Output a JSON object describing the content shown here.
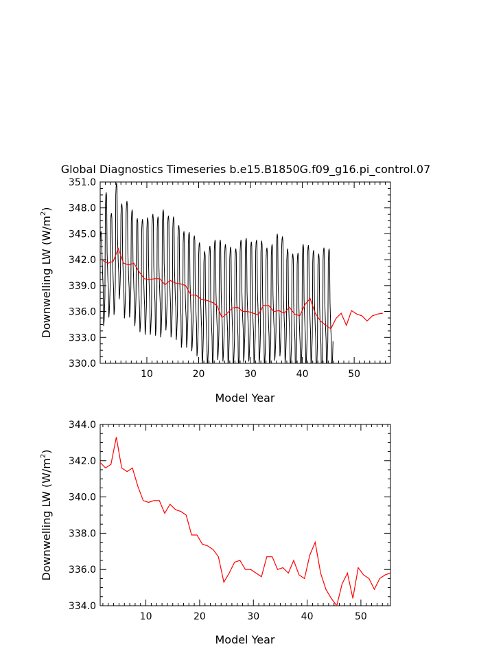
{
  "page_title": "Global Diagnostics Timeseries b.e15.B1850G.f09_g16.pi_control.07",
  "chart_data": [
    {
      "type": "line",
      "title": "Global Diagnostics Timeseries b.e15.B1850G.f09_g16.pi_control.07",
      "xlabel": "Model Year",
      "ylabel": "Downwelling LW (W/m²)",
      "ylabel_parts": {
        "before": "Downwelling LW (W/m",
        "sup": "2",
        "after": ")"
      },
      "xlim": [
        1,
        57
      ],
      "ylim": [
        330.0,
        351.0
      ],
      "xticks": [
        10,
        20,
        30,
        40,
        50
      ],
      "yticks": [
        330.0,
        333.0,
        336.0,
        339.0,
        342.0,
        345.0,
        348.0,
        351.0
      ],
      "ytick_labels": [
        "330.0",
        "333.0",
        "336.0",
        "339.0",
        "342.0",
        "345.0",
        "348.0",
        "351.0"
      ],
      "grid": false,
      "series": [
        {
          "kind": "monthly",
          "color": "#000000",
          "seasonal_amplitude": 3.2,
          "values": [
            342.1,
            341.6,
            337.5,
            346.6,
            341.4,
            338.5,
            344.2,
            341.5,
            338.8,
            347.7,
            343.3,
            340.6,
            345.3,
            341.0,
            338.4,
            345.6,
            341.6,
            338.5,
            344.6,
            340.5,
            337.5,
            343.6,
            339.3,
            336.8,
            343.5,
            339.4,
            336.5,
            343.7,
            339.9,
            336.5,
            344.1,
            339.9,
            336.4,
            343.8,
            339.8,
            336.2,
            344.6,
            340.3,
            337.0,
            343.9,
            339.6,
            336.2,
            343.8,
            339.4,
            335.9,
            342.8,
            338.4,
            335.0,
            342.1,
            338.1,
            335.0,
            342.0,
            338.0,
            334.6,
            341.6,
            337.4,
            334.0,
            340.8,
            336.8,
            333.0,
            339.8,
            335.7,
            332.6,
            340.4,
            335.9,
            332.9,
            341.1,
            336.9,
            333.6,
            341.1,
            336.9,
            333.4,
            340.6,
            336.6,
            333.0,
            340.3,
            336.3,
            332.6,
            340.1,
            336.0,
            332.6,
            341.1,
            336.9,
            333.3,
            341.3,
            336.9,
            333.4,
            340.9,
            336.4,
            333.0,
            341.1,
            337.0,
            333.2,
            341.0,
            336.3,
            332.6,
            340.2,
            336.0,
            332.5,
            340.6,
            336.6,
            333.5,
            341.8,
            337.8,
            334.0,
            341.5,
            336.8,
            333.2,
            340.1,
            335.9,
            332.3,
            339.5,
            335.4,
            331.6,
            339.6,
            335.1,
            331.7,
            340.6,
            336.1,
            332.7,
            340.5,
            336.6,
            332.9,
            339.9,
            335.8,
            332.0,
            339.5,
            335.1,
            331.8,
            340.2,
            335.6,
            332.3,
            340.1,
            335.7,
            332.3
          ]
        },
        {
          "kind": "annual",
          "color": "#ff0000",
          "years": [
            1.5,
            2.5,
            3.5,
            4.5,
            5.5,
            6.5,
            7.5,
            8.5,
            9.5,
            10.5,
            11.5,
            12.5,
            13.5,
            14.5,
            15.5,
            16.5,
            17.5,
            18.5,
            19.5,
            20.5,
            21.5,
            22.5,
            23.5,
            24.5,
            25.5,
            26.5,
            27.5,
            28.5,
            29.5,
            30.5,
            31.5,
            32.5,
            33.5,
            34.5,
            35.5,
            36.5,
            37.5,
            38.5,
            39.5,
            40.5,
            41.5,
            42.5,
            43.5,
            44.5,
            45.5,
            46.5,
            47.5,
            48.5,
            49.5,
            50.5,
            51.5,
            52.5,
            53.5,
            54.5,
            55.5
          ],
          "values": [
            341.9,
            341.6,
            341.8,
            343.3,
            341.6,
            341.4,
            341.6,
            340.6,
            339.8,
            339.7,
            339.8,
            339.8,
            339.1,
            339.6,
            339.3,
            339.2,
            339.0,
            337.9,
            337.9,
            337.4,
            337.3,
            337.1,
            336.7,
            335.3,
            335.8,
            336.4,
            336.5,
            336.0,
            336.0,
            335.8,
            335.6,
            336.7,
            336.7,
            336.0,
            336.1,
            335.8,
            336.5,
            335.7,
            335.5,
            336.8,
            337.5,
            335.8,
            334.9,
            334.4,
            334.0,
            335.2,
            335.8,
            334.4,
            336.1,
            335.7,
            335.5,
            334.9,
            335.5,
            335.7,
            335.8
          ]
        }
      ]
    },
    {
      "type": "line",
      "title": "",
      "xlabel": "Model Year",
      "ylabel": "Downwelling LW (W/m²)",
      "ylabel_parts": {
        "before": "Downwelling LW (W/m",
        "sup": "2",
        "after": ")"
      },
      "xlim": [
        1.5,
        55.5
      ],
      "ylim": [
        334.0,
        344.0
      ],
      "xticks": [
        10,
        20,
        30,
        40,
        50
      ],
      "yticks": [
        334.0,
        336.0,
        338.0,
        340.0,
        342.0,
        344.0
      ],
      "ytick_labels": [
        "334.0",
        "336.0",
        "338.0",
        "340.0",
        "342.0",
        "344.0"
      ],
      "grid": false,
      "series": [
        {
          "kind": "annual",
          "color": "#ff0000",
          "years": [
            1.5,
            2.5,
            3.5,
            4.5,
            5.5,
            6.5,
            7.5,
            8.5,
            9.5,
            10.5,
            11.5,
            12.5,
            13.5,
            14.5,
            15.5,
            16.5,
            17.5,
            18.5,
            19.5,
            20.5,
            21.5,
            22.5,
            23.5,
            24.5,
            25.5,
            26.5,
            27.5,
            28.5,
            29.5,
            30.5,
            31.5,
            32.5,
            33.5,
            34.5,
            35.5,
            36.5,
            37.5,
            38.5,
            39.5,
            40.5,
            41.5,
            42.5,
            43.5,
            44.5,
            45.5,
            46.5,
            47.5,
            48.5,
            49.5,
            50.5,
            51.5,
            52.5,
            53.5,
            54.5,
            55.5
          ],
          "values": [
            341.9,
            341.6,
            341.8,
            343.3,
            341.6,
            341.4,
            341.6,
            340.6,
            339.8,
            339.7,
            339.8,
            339.8,
            339.1,
            339.6,
            339.3,
            339.2,
            339.0,
            337.9,
            337.9,
            337.4,
            337.3,
            337.1,
            336.7,
            335.3,
            335.8,
            336.4,
            336.5,
            336.0,
            336.0,
            335.8,
            335.6,
            336.7,
            336.7,
            336.0,
            336.1,
            335.8,
            336.5,
            335.7,
            335.5,
            336.8,
            337.5,
            335.8,
            334.9,
            334.4,
            334.0,
            335.2,
            335.8,
            334.4,
            336.1,
            335.7,
            335.5,
            334.9,
            335.5,
            335.7,
            335.8
          ]
        }
      ]
    }
  ]
}
